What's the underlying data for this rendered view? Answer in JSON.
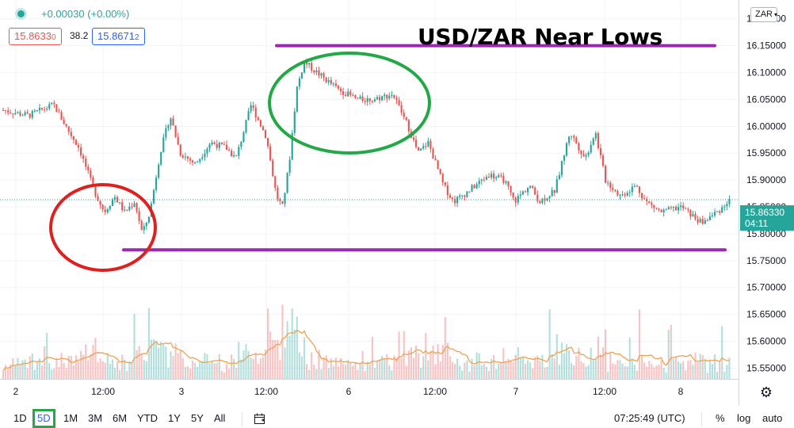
{
  "header": {
    "change": "+0.00030 (+0.00%)",
    "sell_price": "15.8633",
    "sell_price_small": "0",
    "spread": "38.2",
    "buy_price": "15.8671",
    "buy_price_small": "2",
    "currency": "ZAR"
  },
  "title": "USD/ZAR Near Lows",
  "last_price": {
    "value": "15.86330",
    "countdown": "04:11"
  },
  "toolbar": {
    "timeframes": [
      "1D",
      "5D",
      "1M",
      "3M",
      "6M",
      "YTD",
      "1Y",
      "5Y",
      "All"
    ],
    "active_timeframe": "5D",
    "time": "07:25:49 (UTC)",
    "percent": "%",
    "log": "log",
    "auto": "auto"
  },
  "colors": {
    "up": "#26a69a",
    "down": "#ef5350",
    "support_resistance": "#9c27b0",
    "green_circle": "#22a846",
    "red_circle": "#e02020",
    "volume_ma": "#f0a050"
  },
  "chart_data": {
    "type": "candlestick",
    "title": "USD/ZAR Near Lows",
    "y_tick_labels": [
      "16.20000",
      "16.15000",
      "16.10000",
      "16.05000",
      "16.00000",
      "15.95000",
      "15.90000",
      "15.85000",
      "15.80000",
      "15.75000",
      "15.70000",
      "15.65000",
      "15.60000",
      "15.55000"
    ],
    "x_tick_labels": [
      "2",
      "12:00",
      "3",
      "12:00",
      "6",
      "12:00",
      "7",
      "12:00",
      "8"
    ],
    "ylim": [
      15.53,
      16.235
    ],
    "resistance": 16.15,
    "support": 15.77,
    "last": 15.8633,
    "price_path": [
      [
        0.0,
        16.03
      ],
      [
        0.5,
        16.02
      ],
      [
        1.0,
        16.04
      ],
      [
        1.3,
        15.99
      ],
      [
        1.5,
        15.96
      ],
      [
        1.8,
        15.88
      ],
      [
        2.0,
        15.84
      ],
      [
        2.2,
        15.87
      ],
      [
        2.4,
        15.84
      ],
      [
        2.6,
        15.86
      ],
      [
        2.75,
        15.8
      ],
      [
        2.9,
        15.84
      ],
      [
        3.1,
        15.95
      ],
      [
        3.3,
        16.02
      ],
      [
        3.5,
        15.95
      ],
      [
        3.8,
        15.93
      ],
      [
        4.1,
        15.97
      ],
      [
        4.4,
        15.96
      ],
      [
        4.6,
        15.94
      ],
      [
        4.9,
        16.04
      ],
      [
        5.2,
        15.98
      ],
      [
        5.4,
        15.87
      ],
      [
        5.52,
        15.85
      ],
      [
        5.65,
        15.93
      ],
      [
        5.8,
        16.07
      ],
      [
        5.95,
        16.12
      ],
      [
        6.2,
        16.1
      ],
      [
        6.6,
        16.07
      ],
      [
        7.0,
        16.05
      ],
      [
        7.3,
        16.05
      ],
      [
        7.7,
        16.06
      ],
      [
        8.0,
        16.0
      ],
      [
        8.2,
        15.95
      ],
      [
        8.4,
        15.97
      ],
      [
        8.7,
        15.89
      ],
      [
        8.9,
        15.86
      ],
      [
        9.2,
        15.88
      ],
      [
        9.6,
        15.91
      ],
      [
        9.9,
        15.9
      ],
      [
        10.1,
        15.86
      ],
      [
        10.4,
        15.89
      ],
      [
        10.6,
        15.86
      ],
      [
        10.9,
        15.88
      ],
      [
        11.2,
        15.99
      ],
      [
        11.5,
        15.94
      ],
      [
        11.7,
        15.99
      ],
      [
        11.9,
        15.9
      ],
      [
        12.2,
        15.87
      ],
      [
        12.5,
        15.89
      ],
      [
        12.7,
        15.86
      ],
      [
        13.0,
        15.84
      ],
      [
        13.4,
        15.85
      ],
      [
        13.8,
        15.82
      ],
      [
        14.1,
        15.84
      ],
      [
        14.35,
        15.86
      ]
    ]
  }
}
